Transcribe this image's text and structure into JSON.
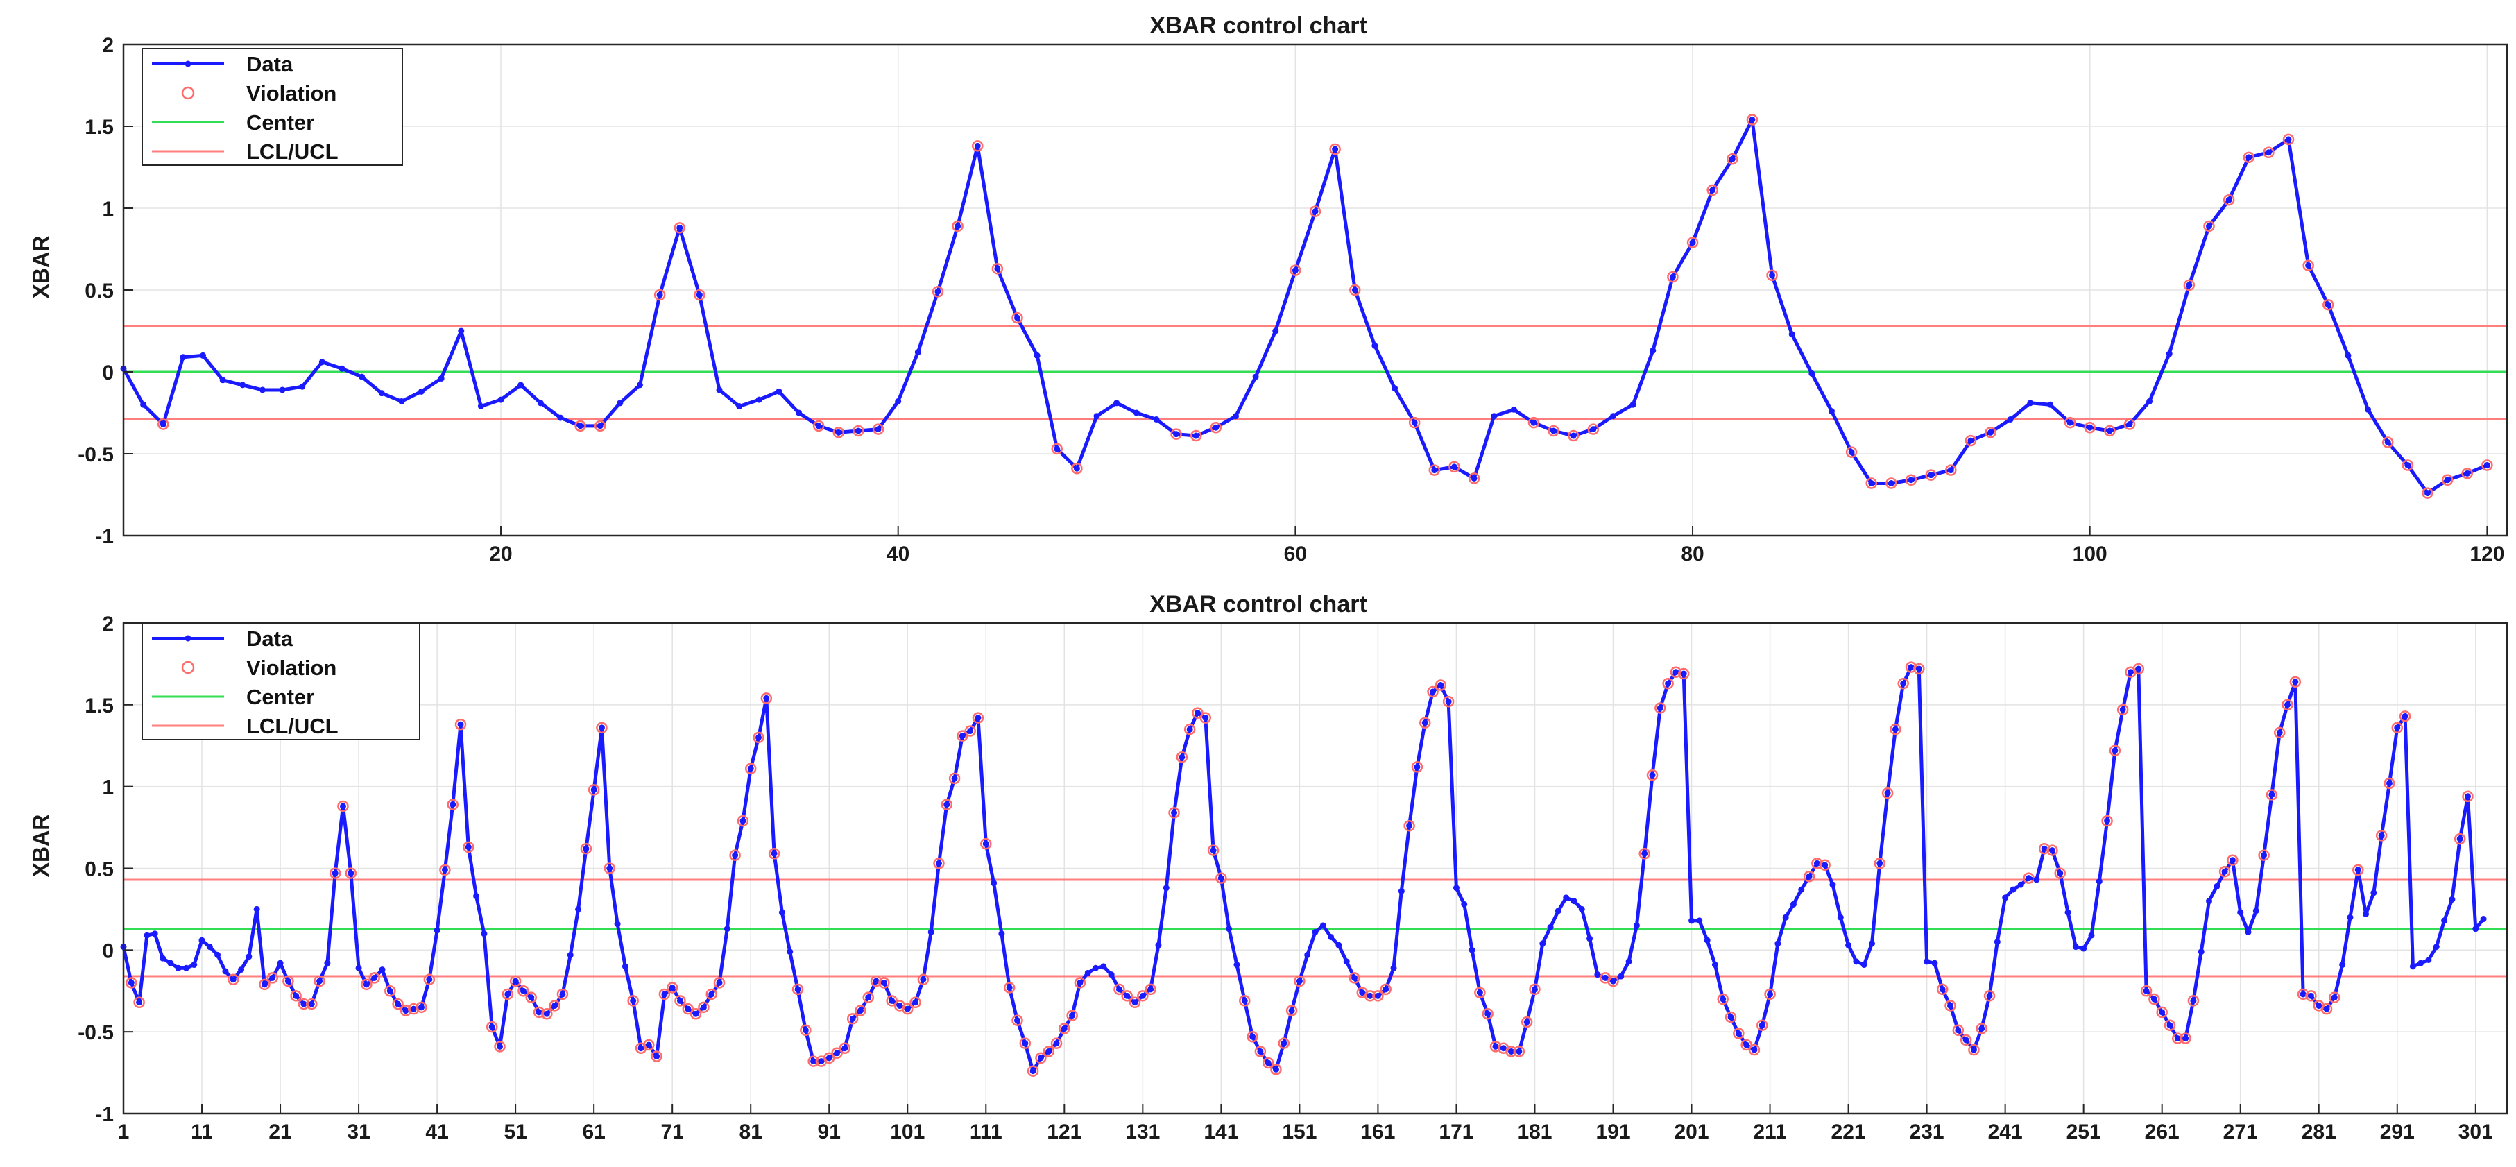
{
  "chart_data": [
    {
      "type": "line",
      "title": "XBAR control chart",
      "ylabel": "XBAR",
      "xlabel": "",
      "xlim": [
        1,
        121
      ],
      "ylim": [
        -1,
        2
      ],
      "x_ticks": [
        20,
        40,
        60,
        80,
        100,
        120
      ],
      "y_ticks": [
        -1,
        -0.5,
        0,
        0.5,
        1,
        1.5,
        2
      ],
      "grid": true,
      "legend_position": "top-left",
      "center": 0,
      "lcl": -0.29,
      "ucl": 0.28,
      "colors": {
        "data": "#1a1aff",
        "violation": "#ff6a6a",
        "center": "#33dd55",
        "limits": "#ff7f7f"
      },
      "series": [
        {
          "name": "Data",
          "x_start": 1,
          "values": [
            0.02,
            -0.2,
            -0.32,
            0.09,
            0.1,
            -0.05,
            -0.08,
            -0.11,
            -0.11,
            -0.09,
            0.06,
            0.02,
            -0.03,
            -0.13,
            -0.18,
            -0.12,
            -0.04,
            0.25,
            -0.21,
            -0.17,
            -0.08,
            -0.19,
            -0.28,
            -0.33,
            -0.33,
            -0.19,
            -0.08,
            0.47,
            0.88,
            0.47,
            -0.11,
            -0.21,
            -0.17,
            -0.12,
            -0.25,
            -0.33,
            -0.37,
            -0.36,
            -0.35,
            -0.18,
            0.12,
            0.49,
            0.89,
            1.38,
            0.63,
            0.33,
            0.1,
            -0.47,
            -0.59,
            -0.27,
            -0.19,
            -0.25,
            -0.29,
            -0.38,
            -0.39,
            -0.34,
            -0.27,
            -0.03,
            0.25,
            0.62,
            0.98,
            1.36,
            0.5,
            0.16,
            -0.1,
            -0.31,
            -0.6,
            -0.58,
            -0.65,
            -0.27,
            -0.23,
            -0.31,
            -0.36,
            -0.39,
            -0.35,
            -0.27,
            -0.2,
            0.13,
            0.58,
            0.79,
            1.11,
            1.3,
            1.54,
            0.59,
            0.23,
            -0.01,
            -0.24,
            -0.49,
            -0.68,
            -0.68,
            -0.66,
            -0.63,
            -0.6,
            -0.42,
            -0.37,
            -0.29,
            -0.19,
            -0.2,
            -0.31,
            -0.34,
            -0.36,
            -0.32,
            -0.18,
            0.11,
            0.53,
            0.89,
            1.05,
            1.31,
            1.34,
            1.42,
            0.65,
            0.41,
            0.1,
            -0.23,
            -0.43,
            -0.57,
            -0.74,
            -0.66,
            -0.62,
            -0.57
          ]
        },
        {
          "name": "Violation"
        },
        {
          "name": "Center"
        },
        {
          "name": "LCL/UCL"
        }
      ]
    },
    {
      "type": "line",
      "title": "XBAR control chart",
      "ylabel": "XBAR",
      "xlabel": "",
      "xlim": [
        1,
        305
      ],
      "ylim": [
        -1,
        2
      ],
      "x_ticks": [
        1,
        11,
        21,
        31,
        41,
        51,
        61,
        71,
        81,
        91,
        101,
        111,
        121,
        131,
        141,
        151,
        161,
        171,
        181,
        191,
        201,
        211,
        221,
        231,
        241,
        251,
        261,
        271,
        281,
        291,
        301
      ],
      "y_ticks": [
        -1,
        -0.5,
        0,
        0.5,
        1,
        1.5,
        2
      ],
      "grid": true,
      "legend_position": "top-left",
      "center": 0.13,
      "lcl": -0.16,
      "ucl": 0.43,
      "colors": {
        "data": "#1a1aff",
        "violation": "#ff6a6a",
        "center": "#33dd55",
        "limits": "#ff7f7f"
      },
      "series": [
        {
          "name": "Data",
          "x_start": 1,
          "values": [
            0.02,
            -0.2,
            -0.32,
            0.09,
            0.1,
            -0.05,
            -0.08,
            -0.11,
            -0.11,
            -0.09,
            0.06,
            0.02,
            -0.03,
            -0.13,
            -0.18,
            -0.12,
            -0.04,
            0.25,
            -0.21,
            -0.17,
            -0.08,
            -0.19,
            -0.28,
            -0.33,
            -0.33,
            -0.19,
            -0.08,
            0.47,
            0.88,
            0.47,
            -0.11,
            -0.21,
            -0.17,
            -0.12,
            -0.25,
            -0.33,
            -0.37,
            -0.36,
            -0.35,
            -0.18,
            0.12,
            0.49,
            0.89,
            1.38,
            0.63,
            0.33,
            0.1,
            -0.47,
            -0.59,
            -0.27,
            -0.19,
            -0.25,
            -0.29,
            -0.38,
            -0.39,
            -0.34,
            -0.27,
            -0.03,
            0.25,
            0.62,
            0.98,
            1.36,
            0.5,
            0.16,
            -0.1,
            -0.31,
            -0.6,
            -0.58,
            -0.65,
            -0.27,
            -0.23,
            -0.31,
            -0.36,
            -0.39,
            -0.35,
            -0.27,
            -0.2,
            0.13,
            0.58,
            0.79,
            1.11,
            1.3,
            1.54,
            0.59,
            0.23,
            -0.01,
            -0.24,
            -0.49,
            -0.68,
            -0.68,
            -0.66,
            -0.63,
            -0.6,
            -0.42,
            -0.37,
            -0.29,
            -0.19,
            -0.2,
            -0.31,
            -0.34,
            -0.36,
            -0.32,
            -0.18,
            0.11,
            0.53,
            0.89,
            1.05,
            1.31,
            1.34,
            1.42,
            0.65,
            0.41,
            0.1,
            -0.23,
            -0.43,
            -0.57,
            -0.74,
            -0.66,
            -0.62,
            -0.57,
            -0.48,
            -0.4,
            -0.2,
            -0.14,
            -0.11,
            -0.1,
            -0.15,
            -0.24,
            -0.28,
            -0.32,
            -0.28,
            -0.24,
            0.03,
            0.38,
            0.84,
            1.18,
            1.35,
            1.45,
            1.42,
            0.61,
            0.44,
            0.13,
            -0.09,
            -0.31,
            -0.53,
            -0.62,
            -0.69,
            -0.73,
            -0.57,
            -0.37,
            -0.19,
            -0.03,
            0.11,
            0.15,
            0.08,
            0.03,
            -0.07,
            -0.17,
            -0.26,
            -0.28,
            -0.28,
            -0.24,
            -0.11,
            0.36,
            0.76,
            1.12,
            1.39,
            1.58,
            1.62,
            1.52,
            0.38,
            0.28,
            0.0,
            -0.26,
            -0.39,
            -0.59,
            -0.6,
            -0.62,
            -0.62,
            -0.44,
            -0.24,
            0.04,
            0.14,
            0.24,
            0.32,
            0.3,
            0.25,
            0.07,
            -0.15,
            -0.17,
            -0.19,
            -0.16,
            -0.07,
            0.15,
            0.59,
            1.07,
            1.48,
            1.63,
            1.7,
            1.69,
            0.18,
            0.18,
            0.06,
            -0.09,
            -0.3,
            -0.41,
            -0.51,
            -0.58,
            -0.61,
            -0.46,
            -0.27,
            0.04,
            0.2,
            0.28,
            0.37,
            0.45,
            0.53,
            0.52,
            0.4,
            0.2,
            0.03,
            -0.07,
            -0.09,
            0.04,
            0.53,
            0.96,
            1.35,
            1.63,
            1.73,
            1.72,
            -0.07,
            -0.08,
            -0.24,
            -0.34,
            -0.49,
            -0.55,
            -0.61,
            -0.48,
            -0.28,
            0.05,
            0.32,
            0.37,
            0.4,
            0.44,
            0.43,
            0.62,
            0.61,
            0.47,
            0.23,
            0.02,
            0.01,
            0.09,
            0.42,
            0.79,
            1.22,
            1.47,
            1.7,
            1.72,
            -0.25,
            -0.3,
            -0.38,
            -0.46,
            -0.54,
            -0.54,
            -0.31,
            -0.01,
            0.3,
            0.39,
            0.48,
            0.55,
            0.23,
            0.11,
            0.24,
            0.58,
            0.95,
            1.33,
            1.5,
            1.64,
            -0.27,
            -0.28,
            -0.34,
            -0.36,
            -0.29,
            -0.09,
            0.2,
            0.49,
            0.22,
            0.35,
            0.7,
            1.02,
            1.36,
            1.43,
            -0.1,
            -0.08,
            -0.06,
            0.02,
            0.18,
            0.31,
            0.68,
            0.94,
            0.13,
            0.19
          ]
        },
        {
          "name": "Violation"
        },
        {
          "name": "Center"
        },
        {
          "name": "LCL/UCL"
        }
      ]
    }
  ]
}
